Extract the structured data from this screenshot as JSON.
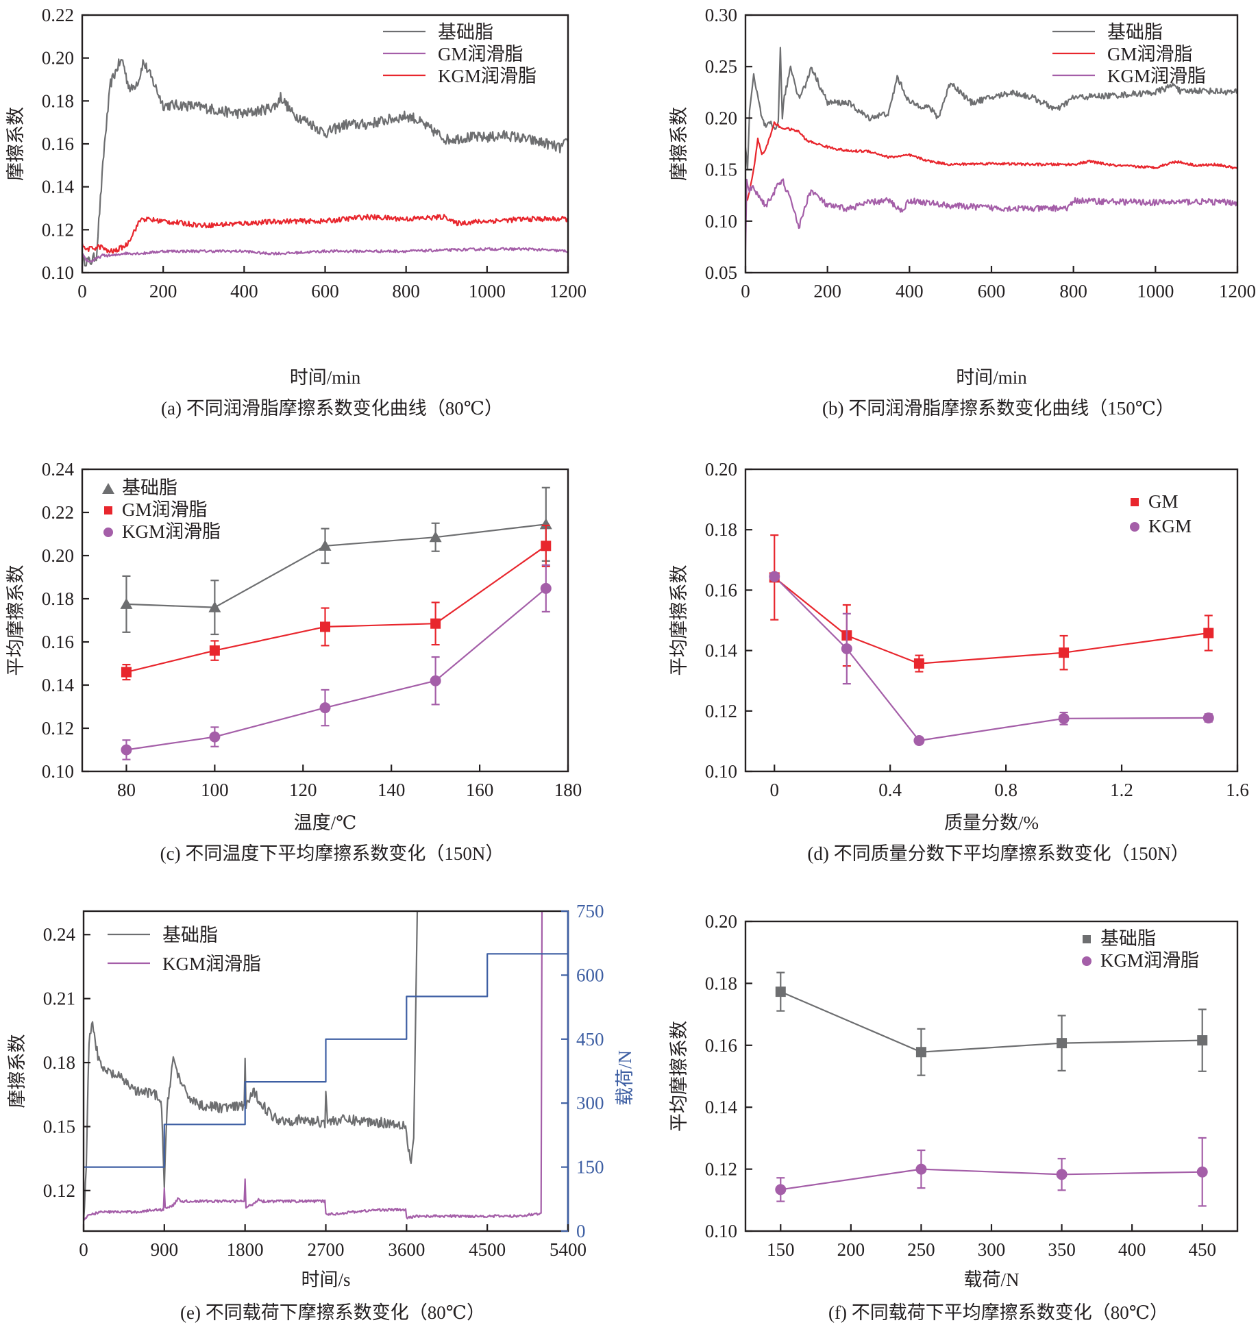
{
  "figure": {
    "colors": {
      "base": "#6d6e70",
      "gm_red": "#e8262d",
      "kgm_purple": "#a45ea8",
      "load_blue": "#3e5fa3",
      "axis": "#231f20"
    }
  },
  "chart_data": [
    {
      "id": "a",
      "type": "line",
      "caption": "(a) 不同润滑脂摩擦系数变化曲线（80℃）",
      "xlabel": "时间/min",
      "ylabel": "摩擦系数",
      "xlim": [
        0,
        1200
      ],
      "ylim": [
        0.1,
        0.22
      ],
      "xticks": [
        0,
        200,
        400,
        600,
        800,
        1000,
        1200
      ],
      "yticks": [
        0.1,
        0.12,
        0.14,
        0.16,
        0.18,
        0.2,
        0.22
      ],
      "ytick_labels": [
        "0.10",
        "0.12",
        "0.14",
        "0.16",
        "0.18",
        "0.20",
        "0.22"
      ],
      "legend_position": "top-right",
      "series": [
        {
          "name": "基础脂",
          "color_key": "base",
          "noise": 0.0025,
          "x": [
            0,
            20,
            35,
            55,
            70,
            90,
            100,
            110,
            120,
            140,
            150,
            160,
            180,
            200,
            250,
            300,
            350,
            400,
            450,
            480,
            490,
            520,
            560,
            600,
            650,
            700,
            750,
            800,
            820,
            850,
            900,
            950,
            1000,
            1050,
            1100,
            1150,
            1180,
            1200
          ],
          "y": [
            0.106,
            0.105,
            0.108,
            0.16,
            0.188,
            0.197,
            0.199,
            0.19,
            0.185,
            0.19,
            0.198,
            0.195,
            0.187,
            0.178,
            0.178,
            0.177,
            0.175,
            0.174,
            0.176,
            0.178,
            0.182,
            0.174,
            0.17,
            0.165,
            0.169,
            0.169,
            0.171,
            0.173,
            0.172,
            0.168,
            0.162,
            0.163,
            0.163,
            0.164,
            0.162,
            0.16,
            0.158,
            0.161
          ]
        },
        {
          "name": "GM润滑脂",
          "color_key": "kgm_purple",
          "noise": 0.0006,
          "x": [
            0,
            10,
            20,
            30,
            50,
            80,
            100,
            150,
            200,
            300,
            400,
            450,
            500,
            600,
            800,
            1000,
            1100,
            1200
          ],
          "y": [
            0.109,
            0.106,
            0.105,
            0.106,
            0.108,
            0.108,
            0.109,
            0.109,
            0.11,
            0.11,
            0.11,
            0.109,
            0.109,
            0.11,
            0.11,
            0.111,
            0.111,
            0.11
          ]
        },
        {
          "name": "KGM润滑脂",
          "color_key": "gm_red",
          "noise": 0.0012,
          "x": [
            0,
            5,
            20,
            40,
            50,
            60,
            80,
            110,
            130,
            145,
            150,
            200,
            300,
            400,
            500,
            600,
            700,
            800,
            900,
            920,
            1000,
            1100,
            1200
          ],
          "y": [
            0.114,
            0.111,
            0.111,
            0.112,
            0.112,
            0.11,
            0.11,
            0.113,
            0.12,
            0.125,
            0.125,
            0.124,
            0.122,
            0.123,
            0.124,
            0.124,
            0.126,
            0.125,
            0.126,
            0.123,
            0.124,
            0.125,
            0.125
          ]
        }
      ]
    },
    {
      "id": "b",
      "type": "line",
      "caption": "(b) 不同润滑脂摩擦系数变化曲线（150℃）",
      "xlabel": "时间/min",
      "ylabel": "摩擦系数",
      "xlim": [
        0,
        1200
      ],
      "ylim": [
        0.05,
        0.3
      ],
      "xticks": [
        0,
        200,
        400,
        600,
        800,
        1000,
        1200
      ],
      "yticks": [
        0.05,
        0.1,
        0.15,
        0.2,
        0.25,
        0.3
      ],
      "ytick_labels": [
        "0.05",
        "0.10",
        "0.15",
        "0.20",
        "0.25",
        "0.30"
      ],
      "legend_position": "top-right",
      "series": [
        {
          "name": "基础脂",
          "color_key": "base",
          "noise": 0.003,
          "x": [
            0,
            5,
            10,
            20,
            30,
            40,
            50,
            60,
            70,
            80,
            85,
            90,
            95,
            110,
            130,
            150,
            160,
            200,
            250,
            300,
            350,
            370,
            400,
            450,
            470,
            500,
            550,
            600,
            650,
            700,
            760,
            800,
            900,
            1000,
            1050,
            1060,
            1100,
            1150,
            1200
          ],
          "y": [
            0.17,
            0.15,
            0.21,
            0.24,
            0.22,
            0.2,
            0.19,
            0.195,
            0.19,
            0.195,
            0.268,
            0.2,
            0.22,
            0.25,
            0.22,
            0.235,
            0.25,
            0.215,
            0.215,
            0.2,
            0.205,
            0.24,
            0.215,
            0.21,
            0.2,
            0.235,
            0.215,
            0.22,
            0.225,
            0.22,
            0.208,
            0.22,
            0.222,
            0.225,
            0.233,
            0.225,
            0.227,
            0.226,
            0.225
          ]
        },
        {
          "name": "GM润滑脂",
          "color_key": "gm_red",
          "noise": 0.0012,
          "x": [
            0,
            5,
            20,
            30,
            40,
            50,
            70,
            90,
            100,
            130,
            150,
            200,
            250,
            300,
            350,
            400,
            450,
            500,
            600,
            700,
            800,
            840,
            900,
            1000,
            1050,
            1100,
            1150,
            1200
          ],
          "y": [
            0.12,
            0.12,
            0.15,
            0.18,
            0.165,
            0.17,
            0.195,
            0.19,
            0.19,
            0.187,
            0.178,
            0.172,
            0.168,
            0.168,
            0.162,
            0.164,
            0.158,
            0.155,
            0.156,
            0.155,
            0.155,
            0.158,
            0.154,
            0.152,
            0.158,
            0.154,
            0.155,
            0.151
          ]
        },
        {
          "name": "KGM润滑脂",
          "color_key": "kgm_purple",
          "noise": 0.003,
          "x": [
            0,
            3,
            8,
            20,
            40,
            50,
            80,
            90,
            110,
            120,
            130,
            150,
            160,
            200,
            250,
            300,
            350,
            380,
            400,
            500,
            600,
            700,
            790,
            800,
            900,
            1000,
            1100,
            1200
          ],
          "y": [
            0.07,
            0.14,
            0.13,
            0.132,
            0.12,
            0.115,
            0.135,
            0.14,
            0.12,
            0.11,
            0.093,
            0.12,
            0.13,
            0.115,
            0.112,
            0.118,
            0.12,
            0.11,
            0.12,
            0.115,
            0.113,
            0.112,
            0.113,
            0.12,
            0.119,
            0.118,
            0.119,
            0.118
          ]
        }
      ]
    },
    {
      "id": "c",
      "type": "line",
      "caption": "(c) 不同温度下平均摩擦系数变化（150N）",
      "xlabel": "温度/℃",
      "ylabel": "平均摩擦系数",
      "xlim": [
        70,
        180
      ],
      "ylim": [
        0.1,
        0.24
      ],
      "xticks": [
        80,
        100,
        120,
        140,
        160,
        180
      ],
      "yticks": [
        0.1,
        0.12,
        0.14,
        0.16,
        0.18,
        0.2,
        0.22,
        0.24
      ],
      "ytick_labels": [
        "0.10",
        "0.12",
        "0.14",
        "0.16",
        "0.18",
        "0.20",
        "0.22",
        "0.24"
      ],
      "legend_position": "top-left",
      "series": [
        {
          "name": "基础脂",
          "color_key": "base",
          "marker": "triangle",
          "x": [
            80,
            100,
            125,
            150,
            175
          ],
          "y": [
            0.1775,
            0.176,
            0.2045,
            0.2085,
            0.2145
          ],
          "err": [
            0.013,
            0.0125,
            0.008,
            0.0065,
            0.017
          ]
        },
        {
          "name": "GM润滑脂",
          "color_key": "gm_red",
          "marker": "square",
          "x": [
            80,
            100,
            125,
            150,
            175
          ],
          "y": [
            0.146,
            0.156,
            0.167,
            0.1685,
            0.2045
          ],
          "err": [
            0.0035,
            0.0045,
            0.0087,
            0.0098,
            0.0095
          ]
        },
        {
          "name": "KGM润滑脂",
          "color_key": "kgm_purple",
          "marker": "circle",
          "x": [
            80,
            100,
            125,
            150,
            175
          ],
          "y": [
            0.11,
            0.116,
            0.1295,
            0.142,
            0.1848
          ],
          "err": [
            0.0045,
            0.0045,
            0.0083,
            0.011,
            0.0108
          ]
        }
      ]
    },
    {
      "id": "d",
      "type": "line",
      "caption": "(d) 不同质量分数下平均摩擦系数变化（150N）",
      "xlabel": "质量分数/%",
      "ylabel": "平均摩擦系数",
      "xlim": [
        -0.1,
        1.6
      ],
      "ylim": [
        0.1,
        0.2
      ],
      "xticks": [
        0,
        0.4,
        0.8,
        1.2,
        1.6
      ],
      "xtick_labels": [
        "0",
        "0.4",
        "0.8",
        "1.2",
        "1.6"
      ],
      "yticks": [
        0.1,
        0.12,
        0.14,
        0.16,
        0.18,
        0.2
      ],
      "ytick_labels": [
        "0.10",
        "0.12",
        "0.14",
        "0.16",
        "0.18",
        "0.20"
      ],
      "legend_position": "top-right",
      "series": [
        {
          "name": "GM",
          "color_key": "gm_red",
          "marker": "square",
          "x": [
            0,
            0.25,
            0.5,
            1.0,
            1.5
          ],
          "y": [
            0.1642,
            0.145,
            0.1357,
            0.1393,
            0.1458
          ],
          "err": [
            0.014,
            0.0101,
            0.0027,
            0.0056,
            0.0058
          ]
        },
        {
          "name": "KGM",
          "color_key": "kgm_purple",
          "marker": "circle",
          "x": [
            0,
            0.25,
            0.5,
            1.0,
            1.5
          ],
          "y": [
            0.1645,
            0.1406,
            0.1102,
            0.1175,
            0.1177
          ],
          "err": [
            0.0,
            0.0116,
            0.0,
            0.002,
            0.0013
          ]
        }
      ]
    },
    {
      "id": "e",
      "type": "line",
      "caption": "(e) 不同载荷下摩擦系数变化（80℃）",
      "xlabel": "时间/s",
      "ylabel": "摩擦系数",
      "y2label": "载荷/N",
      "xlim": [
        0,
        5400
      ],
      "ylim": [
        0.101,
        0.251
      ],
      "y2lim": [
        0,
        750
      ],
      "xticks": [
        0,
        900,
        1800,
        2700,
        3600,
        4500,
        5400
      ],
      "yticks": [
        0.12,
        0.15,
        0.18,
        0.21,
        0.24
      ],
      "ytick_labels": [
        "0.12",
        "0.15",
        "0.18",
        "0.21",
        "0.24"
      ],
      "y2ticks": [
        0,
        150,
        300,
        450,
        600,
        750
      ],
      "legend_position": "top-left",
      "series": [
        {
          "name": "基础脂",
          "color_key": "base",
          "noise": 0.0025,
          "x": [
            0,
            30,
            60,
            100,
            150,
            200,
            300,
            400,
            500,
            600,
            700,
            800,
            870,
            900,
            930,
            1000,
            1050,
            1100,
            1200,
            1300,
            1500,
            1700,
            1790,
            1800,
            1810,
            1900,
            2000,
            2100,
            2200,
            2400,
            2690,
            2700,
            2720,
            2800,
            3000,
            3300,
            3590,
            3620,
            3650,
            3680,
            3720
          ],
          "y": [
            0.105,
            0.13,
            0.19,
            0.2,
            0.185,
            0.177,
            0.175,
            0.173,
            0.17,
            0.166,
            0.166,
            0.165,
            0.16,
            0.12,
            0.16,
            0.182,
            0.175,
            0.168,
            0.163,
            0.16,
            0.159,
            0.159,
            0.16,
            0.181,
            0.16,
            0.166,
            0.16,
            0.155,
            0.153,
            0.153,
            0.152,
            0.167,
            0.152,
            0.153,
            0.153,
            0.152,
            0.151,
            0.14,
            0.133,
            0.145,
            0.251
          ]
        },
        {
          "name": "KGM润滑脂",
          "color_key": "kgm_purple",
          "noise": 0.0006,
          "x": [
            0,
            50,
            100,
            200,
            400,
            600,
            800,
            890,
            900,
            910,
            1000,
            1050,
            1100,
            1300,
            1500,
            1700,
            1790,
            1800,
            1810,
            1900,
            1950,
            2000,
            2200,
            2400,
            2690,
            2700,
            2800,
            3000,
            3300,
            3590,
            3600,
            3700,
            3900,
            4200,
            4500,
            4800,
            5050,
            5100,
            5110
          ],
          "y": [
            0.106,
            0.108,
            0.109,
            0.11,
            0.11,
            0.11,
            0.111,
            0.111,
            0.121,
            0.112,
            0.113,
            0.116,
            0.115,
            0.115,
            0.115,
            0.115,
            0.115,
            0.125,
            0.112,
            0.114,
            0.116,
            0.115,
            0.115,
            0.115,
            0.115,
            0.109,
            0.109,
            0.11,
            0.111,
            0.111,
            0.107,
            0.108,
            0.108,
            0.108,
            0.108,
            0.108,
            0.109,
            0.109,
            0.251
          ]
        },
        {
          "name": "载荷",
          "color_key": "load_blue",
          "axis": "right",
          "step": true,
          "x": [
            0,
            900,
            900,
            1800,
            1800,
            2700,
            2700,
            3600,
            3600,
            4500,
            4500,
            5400
          ],
          "y": [
            150,
            150,
            250,
            250,
            350,
            350,
            450,
            450,
            550,
            550,
            650,
            650
          ]
        }
      ],
      "legend_entries": [
        "基础脂",
        "KGM润滑脂"
      ]
    },
    {
      "id": "f",
      "type": "line",
      "caption": "(f) 不同载荷下平均摩擦系数变化（80℃）",
      "xlabel": "载荷/N",
      "ylabel": "平均摩擦系数",
      "xlim": [
        125,
        475
      ],
      "ylim": [
        0.1,
        0.2
      ],
      "xticks": [
        150,
        200,
        250,
        300,
        350,
        400,
        450
      ],
      "yticks": [
        0.1,
        0.12,
        0.14,
        0.16,
        0.18,
        0.2
      ],
      "ytick_labels": [
        "0.10",
        "0.12",
        "0.14",
        "0.16",
        "0.18",
        "0.20"
      ],
      "legend_position": "top-right",
      "series": [
        {
          "name": "基础脂",
          "color_key": "base",
          "marker": "square",
          "x": [
            150,
            250,
            350,
            450
          ],
          "y": [
            0.1773,
            0.1578,
            0.1607,
            0.1616
          ],
          "err": [
            0.0062,
            0.0075,
            0.0089,
            0.01
          ]
        },
        {
          "name": "KGM润滑脂",
          "color_key": "kgm_purple",
          "marker": "circle",
          "x": [
            150,
            250,
            350,
            450
          ],
          "y": [
            0.1134,
            0.12,
            0.1183,
            0.1191
          ],
          "err": [
            0.0038,
            0.0061,
            0.0051,
            0.011
          ]
        }
      ]
    }
  ]
}
